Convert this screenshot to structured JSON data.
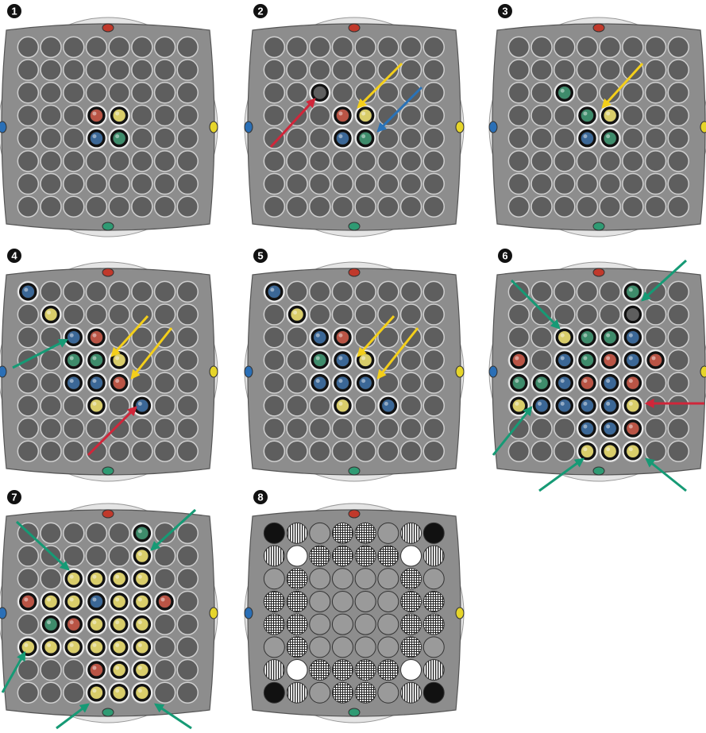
{
  "boards": [
    {
      "label": "1"
    },
    {
      "label": "2"
    },
    {
      "label": "3"
    },
    {
      "label": "4"
    },
    {
      "label": "5"
    },
    {
      "label": "6"
    },
    {
      "label": "7"
    },
    {
      "label": "8"
    }
  ]
}
